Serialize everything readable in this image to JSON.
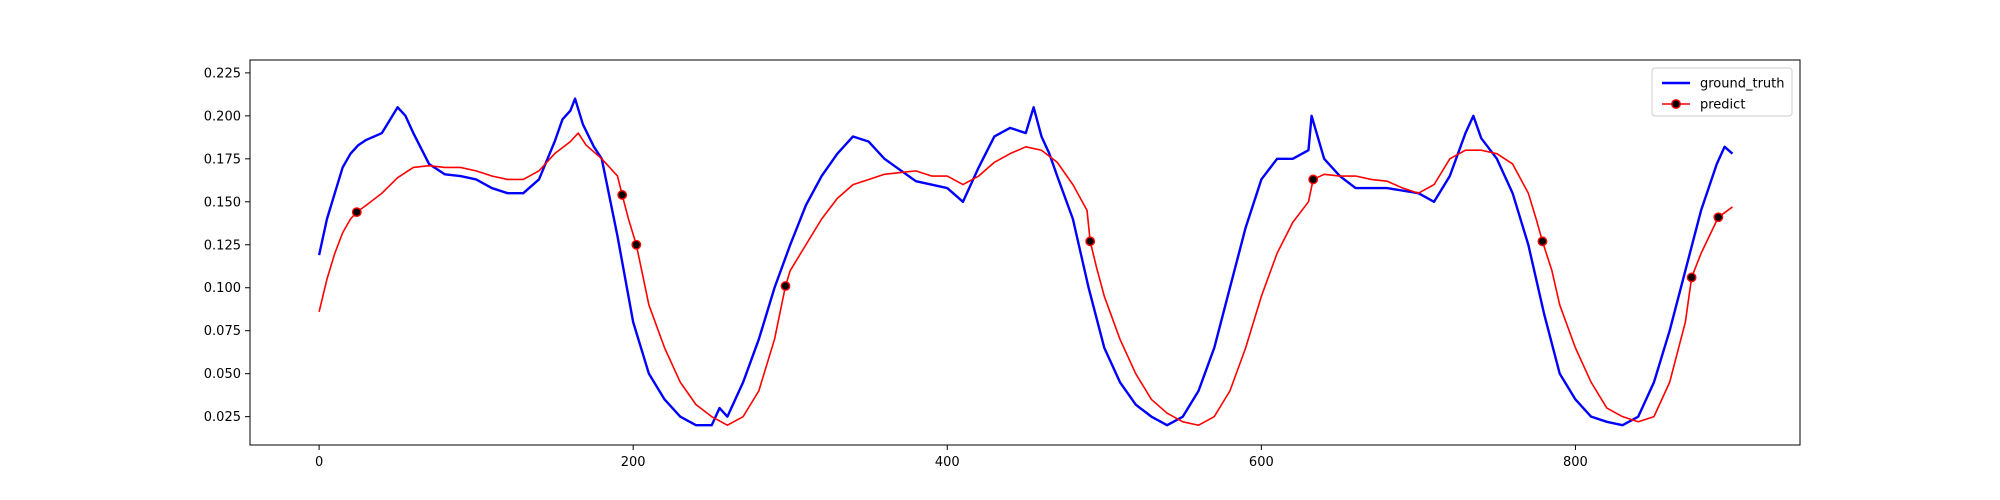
{
  "chart_data": {
    "type": "line",
    "title": "",
    "xlabel": "",
    "ylabel": "",
    "xlim": [
      -44,
      943
    ],
    "ylim": [
      0.0085,
      0.2325
    ],
    "xticks": [
      0,
      200,
      400,
      600,
      800
    ],
    "yticks": [
      0.025,
      0.05,
      0.075,
      0.1,
      0.125,
      0.15,
      0.175,
      0.2,
      0.225
    ],
    "xtick_labels": [
      "0",
      "200",
      "400",
      "600",
      "800"
    ],
    "ytick_labels": [
      "0.025",
      "0.050",
      "0.075",
      "0.100",
      "0.125",
      "0.150",
      "0.175",
      "0.200",
      "0.225"
    ],
    "grid": false,
    "legend_position": "top-right",
    "series": [
      {
        "name": "ground_truth",
        "color": "#0000ff",
        "marker": "none",
        "x": [
          0,
          5,
          10,
          15,
          20,
          25,
          30,
          40,
          50,
          55,
          60,
          70,
          80,
          90,
          100,
          110,
          120,
          130,
          140,
          150,
          155,
          160,
          163,
          168,
          175,
          180,
          190,
          200,
          210,
          220,
          230,
          240,
          250,
          255,
          260,
          270,
          280,
          290,
          300,
          310,
          320,
          330,
          340,
          350,
          360,
          380,
          400,
          410,
          420,
          430,
          440,
          450,
          455,
          460,
          465,
          470,
          480,
          490,
          500,
          510,
          520,
          530,
          540,
          550,
          560,
          570,
          580,
          590,
          600,
          610,
          620,
          630,
          632,
          640,
          650,
          660,
          680,
          700,
          710,
          720,
          730,
          735,
          740,
          750,
          760,
          770,
          780,
          790,
          800,
          810,
          820,
          830,
          840,
          850,
          860,
          870,
          880,
          890,
          895,
          900
        ],
        "y": [
          0.119,
          0.14,
          0.155,
          0.17,
          0.178,
          0.183,
          0.186,
          0.19,
          0.205,
          0.2,
          0.19,
          0.172,
          0.166,
          0.165,
          0.163,
          0.158,
          0.155,
          0.155,
          0.163,
          0.185,
          0.198,
          0.203,
          0.21,
          0.195,
          0.182,
          0.175,
          0.13,
          0.08,
          0.05,
          0.035,
          0.025,
          0.02,
          0.02,
          0.03,
          0.025,
          0.045,
          0.07,
          0.1,
          0.125,
          0.148,
          0.165,
          0.178,
          0.188,
          0.185,
          0.175,
          0.162,
          0.158,
          0.15,
          0.17,
          0.188,
          0.193,
          0.19,
          0.205,
          0.188,
          0.178,
          0.165,
          0.14,
          0.1,
          0.065,
          0.045,
          0.032,
          0.025,
          0.02,
          0.025,
          0.04,
          0.065,
          0.1,
          0.135,
          0.163,
          0.175,
          0.175,
          0.18,
          0.2,
          0.175,
          0.165,
          0.158,
          0.158,
          0.155,
          0.15,
          0.165,
          0.19,
          0.2,
          0.187,
          0.175,
          0.155,
          0.125,
          0.085,
          0.05,
          0.035,
          0.025,
          0.022,
          0.02,
          0.025,
          0.045,
          0.075,
          0.11,
          0.145,
          0.172,
          0.182,
          0.178
        ]
      },
      {
        "name": "predict",
        "color": "#ff0000",
        "marker": "circle",
        "marker_points": [
          [
            24,
            0.144
          ],
          [
            193,
            0.154
          ],
          [
            202,
            0.125
          ],
          [
            297,
            0.101
          ],
          [
            491,
            0.127
          ],
          [
            633,
            0.163
          ],
          [
            779,
            0.127
          ],
          [
            874,
            0.106
          ],
          [
            891,
            0.141
          ]
        ],
        "x": [
          0,
          5,
          10,
          15,
          20,
          24,
          30,
          40,
          50,
          60,
          70,
          80,
          90,
          100,
          110,
          120,
          130,
          140,
          150,
          160,
          165,
          170,
          180,
          190,
          193,
          197,
          202,
          210,
          220,
          230,
          240,
          250,
          260,
          270,
          280,
          290,
          297,
          300,
          310,
          320,
          330,
          340,
          350,
          360,
          370,
          380,
          390,
          400,
          410,
          420,
          430,
          440,
          450,
          460,
          470,
          480,
          489,
          491,
          495,
          500,
          510,
          520,
          530,
          540,
          550,
          560,
          570,
          580,
          590,
          600,
          610,
          620,
          630,
          633,
          640,
          650,
          660,
          670,
          680,
          690,
          700,
          710,
          720,
          730,
          740,
          750,
          760,
          770,
          775,
          779,
          785,
          790,
          800,
          810,
          820,
          830,
          840,
          850,
          860,
          870,
          874,
          880,
          891,
          900
        ],
        "y": [
          0.086,
          0.105,
          0.12,
          0.132,
          0.14,
          0.144,
          0.148,
          0.155,
          0.164,
          0.17,
          0.171,
          0.17,
          0.17,
          0.168,
          0.165,
          0.163,
          0.163,
          0.168,
          0.178,
          0.185,
          0.19,
          0.183,
          0.175,
          0.165,
          0.154,
          0.14,
          0.125,
          0.09,
          0.065,
          0.045,
          0.032,
          0.025,
          0.02,
          0.025,
          0.04,
          0.07,
          0.101,
          0.11,
          0.125,
          0.14,
          0.152,
          0.16,
          0.163,
          0.166,
          0.167,
          0.168,
          0.165,
          0.165,
          0.16,
          0.165,
          0.173,
          0.178,
          0.182,
          0.18,
          0.173,
          0.16,
          0.145,
          0.127,
          0.112,
          0.095,
          0.07,
          0.05,
          0.035,
          0.027,
          0.022,
          0.02,
          0.025,
          0.04,
          0.065,
          0.095,
          0.12,
          0.138,
          0.15,
          0.163,
          0.166,
          0.165,
          0.165,
          0.163,
          0.162,
          0.158,
          0.155,
          0.16,
          0.175,
          0.18,
          0.18,
          0.178,
          0.172,
          0.155,
          0.14,
          0.127,
          0.11,
          0.09,
          0.065,
          0.045,
          0.03,
          0.025,
          0.022,
          0.025,
          0.045,
          0.08,
          0.106,
          0.12,
          0.141,
          0.147
        ]
      }
    ]
  }
}
